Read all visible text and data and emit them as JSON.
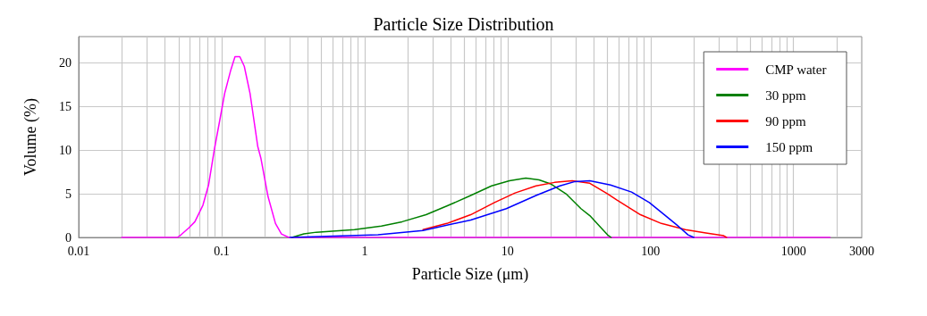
{
  "chart_data": {
    "type": "line",
    "title": "Particle Size Distribution",
    "xlabel": "Particle Size (μm)",
    "ylabel": "Volume (%)",
    "log": "x",
    "xlim": [
      0.01,
      3000
    ],
    "ylim": [
      0,
      23
    ],
    "xticks": [
      0.01,
      {
        "value": 0.02,
        "label": null
      },
      {
        "value": 0.03,
        "label": null
      },
      {
        "value": 0.04,
        "label": null
      },
      {
        "value": 0.05,
        "label": null
      },
      {
        "value": 0.06,
        "label": null
      },
      {
        "value": 0.07,
        "label": null
      },
      {
        "value": 0.08,
        "label": null
      },
      {
        "value": 0.09,
        "label": null
      },
      0.1,
      {
        "value": 0.2,
        "label": null
      },
      {
        "value": 0.3,
        "label": null
      },
      {
        "value": 0.4,
        "label": null
      },
      {
        "value": 0.5,
        "label": null
      },
      {
        "value": 0.6,
        "label": null
      },
      {
        "value": 0.7,
        "label": null
      },
      {
        "value": 0.8,
        "label": null
      },
      {
        "value": 0.9,
        "label": null
      },
      1,
      {
        "value": 2,
        "label": null
      },
      {
        "value": 3,
        "label": null
      },
      {
        "value": 4,
        "label": null
      },
      {
        "value": 5,
        "label": null
      },
      {
        "value": 6,
        "label": null
      },
      {
        "value": 7,
        "label": null
      },
      {
        "value": 8,
        "label": null
      },
      {
        "value": 9,
        "label": null
      },
      10,
      {
        "value": 20,
        "label": null
      },
      {
        "value": 30,
        "label": null
      },
      {
        "value": 40,
        "label": null
      },
      {
        "value": 50,
        "label": null
      },
      {
        "value": 60,
        "label": null
      },
      {
        "value": 70,
        "label": null
      },
      {
        "value": 80,
        "label": null
      },
      {
        "value": 90,
        "label": null
      },
      100,
      {
        "value": 200,
        "label": null
      },
      {
        "value": 300,
        "label": null
      },
      {
        "value": 400,
        "label": null
      },
      {
        "value": 500,
        "label": null
      },
      {
        "value": 600,
        "label": null
      },
      {
        "value": 700,
        "label": null
      },
      {
        "value": 800,
        "label": null
      },
      {
        "value": 900,
        "label": null
      },
      1000,
      {
        "value": 2000,
        "label": null
      },
      3000
    ],
    "yticks": [
      0,
      5,
      10,
      15,
      20
    ],
    "grid": true,
    "legend": "top right",
    "marker": "none",
    "line_style": "solid",
    "series": [
      {
        "name": "CMP water",
        "color": "#ff00ff",
        "x": [
          0.02,
          0.049,
          0.052,
          0.059,
          0.065,
          0.074,
          0.081,
          0.089,
          0.098,
          0.105,
          0.116,
          0.124,
          0.134,
          0.144,
          0.158,
          0.179,
          0.188,
          0.211,
          0.238,
          0.262,
          0.295,
          1800
        ],
        "values": [
          0,
          0,
          0.3,
          1.1,
          1.8,
          3.7,
          6.0,
          10.1,
          13.8,
          16.5,
          19.2,
          20.7,
          20.7,
          19.6,
          16.5,
          10.4,
          9.1,
          4.7,
          1.6,
          0.4,
          0,
          0
        ]
      },
      {
        "name": "30 ppm",
        "color": "#008000",
        "x": [
          0.31,
          0.376,
          0.46,
          0.85,
          1.31,
          1.83,
          2.69,
          3.76,
          5.52,
          7.72,
          10.3,
          13.4,
          16.6,
          20.2,
          25.6,
          32.6,
          37.6,
          44.5,
          50,
          53
        ],
        "values": [
          0,
          0.4,
          0.6,
          0.9,
          1.3,
          1.8,
          2.6,
          3.6,
          4.8,
          5.9,
          6.5,
          6.8,
          6.6,
          6.1,
          5.0,
          3.3,
          2.5,
          1.2,
          0.3,
          0
        ]
      },
      {
        "name": "90 ppm",
        "color": "#ff0000",
        "x": [
          2.56,
          3.76,
          5.52,
          8.1,
          11.3,
          15.8,
          21.3,
          28.3,
          37.6,
          50,
          57.9,
          85,
          119,
          175,
          244,
          325,
          340
        ],
        "values": [
          0.9,
          1.6,
          2.6,
          4.0,
          5.1,
          5.9,
          6.3,
          6.5,
          6.2,
          5.0,
          4.3,
          2.6,
          1.6,
          0.9,
          0.5,
          0.2,
          0
        ]
      },
      {
        "name": "150 ppm",
        "color": "#0000ff",
        "x": [
          0.3,
          1.24,
          2.56,
          5.52,
          9.8,
          15.8,
          23.2,
          29.6,
          37.6,
          52.5,
          73.6,
          98,
          125,
          151,
          183,
          201
        ],
        "values": [
          0,
          0.3,
          0.8,
          2.0,
          3.3,
          4.8,
          5.9,
          6.4,
          6.5,
          6.0,
          5.2,
          4.0,
          2.6,
          1.5,
          0.3,
          0
        ]
      }
    ]
  }
}
